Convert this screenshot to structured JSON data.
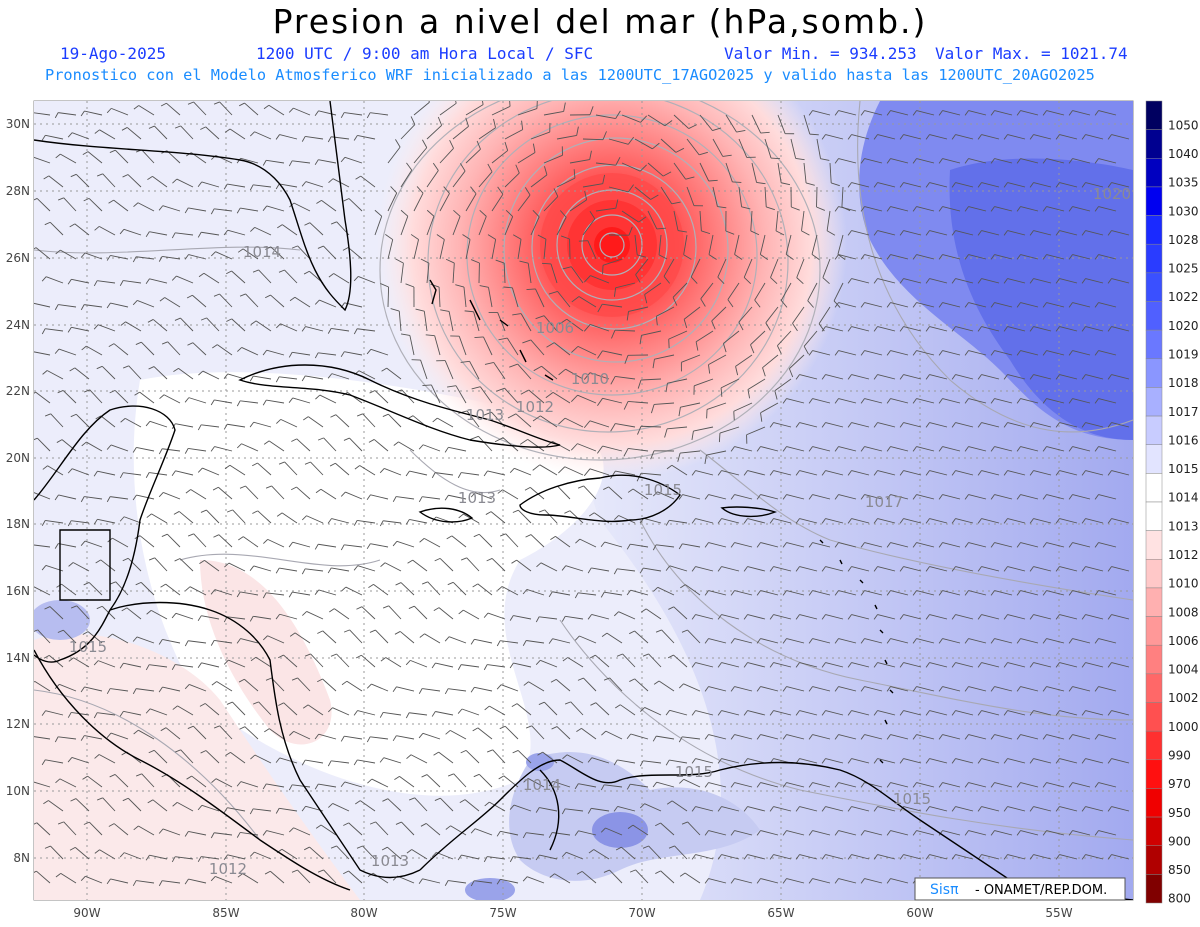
{
  "title": "Presion a nivel del mar (hPa,somb.)",
  "date": "19-Ago-2025",
  "time_label": "1200 UTC / 9:00 am Hora Local / SFC",
  "min_label": "Valor Min. = 934.253",
  "max_label": "Valor Max. = 1021.74",
  "forecast_line": "Pronostico con el Modelo Atmosferico WRF inicializado a las 1200UTC_17AGO2025 y valido hasta las  1200UTC_20AGO2025",
  "credit": {
    "logo": "Sisπ",
    "text": "- ONAMET/REP.DOM."
  },
  "colors": {
    "blue_text": "#1a3cff",
    "cyan_text": "#1a8cff",
    "storm": "#ff3030",
    "high": "#4a5ae8"
  },
  "axes": {
    "lon_labels": [
      "90W",
      "85W",
      "80W",
      "75W",
      "70W",
      "65W",
      "60W",
      "55W"
    ],
    "lat_labels": [
      "30N",
      "28N",
      "26N",
      "24N",
      "22N",
      "20N",
      "18N",
      "16N",
      "14N",
      "12N",
      "10N",
      "8N"
    ]
  },
  "contour_labels": [
    "1014",
    "1006",
    "1010",
    "1012",
    "1013",
    "1013",
    "1017",
    "1015",
    "1020",
    "1015",
    "1015",
    "1014",
    "1013",
    "1012",
    "1015"
  ],
  "colorbar": {
    "levels": [
      "1050",
      "1040",
      "1035",
      "1030",
      "1028",
      "1025",
      "1022",
      "1020",
      "1019",
      "1018",
      "1017",
      "1016",
      "1015",
      "1014",
      "1013",
      "1012",
      "1010",
      "1008",
      "1006",
      "1004",
      "1002",
      "1000",
      "990",
      "970",
      "950",
      "900",
      "850",
      "800"
    ],
    "colors": [
      "#000060",
      "#000090",
      "#0000c0",
      "#0000f0",
      "#1a2aff",
      "#2a3cff",
      "#3a50ff",
      "#5060ff",
      "#6a78ff",
      "#8a96ff",
      "#a8b0ff",
      "#c8ccff",
      "#e2e4ff",
      "#ffffff",
      "#ffffff",
      "#ffe2e2",
      "#ffc8c8",
      "#ffb0b0",
      "#ff9898",
      "#ff8080",
      "#ff6868",
      "#ff5050",
      "#ff3030",
      "#ff1010",
      "#f00000",
      "#d00000",
      "#b00000",
      "#800000"
    ]
  }
}
